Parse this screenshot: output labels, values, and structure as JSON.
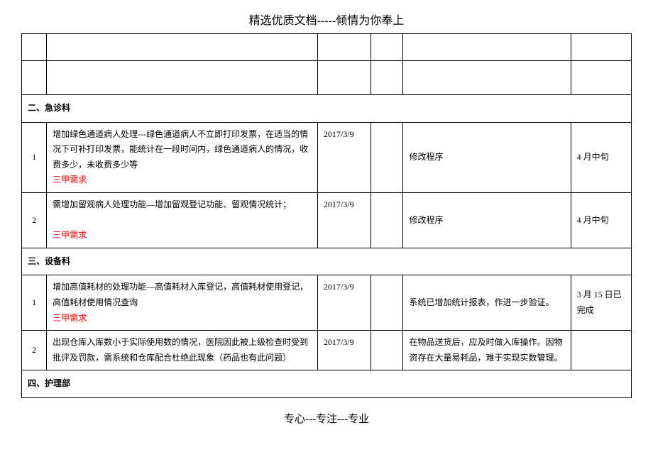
{
  "header": "精选优质文档-----倾情为你奉上",
  "footer": "专心---专注---专业",
  "sections": {
    "s2": {
      "title": "二、急诊科",
      "rows": [
        {
          "num": "1",
          "desc_line1": "增加绿色通道病人处理---绿色通道病人不立即打印发票，在适当的情况下可补打印发票，能统计在一段时间内，绿色通道病人的情况，收费多少，未收费多少等",
          "desc_red": "三甲需求",
          "date": "2017/3/9",
          "action": "修改程序",
          "status": "4 月中旬"
        },
        {
          "num": "2",
          "desc_line1": "需增加留观病人处理功能—增加留观登记功能、留观情况统计；",
          "desc_red": "三甲需求",
          "date": "2017/3/9",
          "action": "修改程序",
          "status": "4 月中旬"
        }
      ]
    },
    "s3": {
      "title": "三、设备科",
      "rows": [
        {
          "num": "1",
          "desc_line1": "增加高值耗材的处理功能—高值耗材入库登记，高值耗材使用登记，高值耗材使用情况查询",
          "desc_red": "三甲需求",
          "date": "2017/3/9",
          "action": "系统已增加统计报表，作进一步验证。",
          "status": "3 月 15 日已完成"
        },
        {
          "num": "2",
          "desc_line1": "出现仓库入库数小于实际使用数的情况，医院因此被上级检查时受到批评及罚款，需系统和仓库配合杜绝此现象（药品也有此问题）",
          "desc_red": "",
          "date": "2017/3/9",
          "action": "在物品送货后，应及时做入库操作。因物资存在大量易耗品，难于实现实数管理。",
          "status": ""
        }
      ]
    },
    "s4": {
      "title": "四、护理部"
    }
  }
}
